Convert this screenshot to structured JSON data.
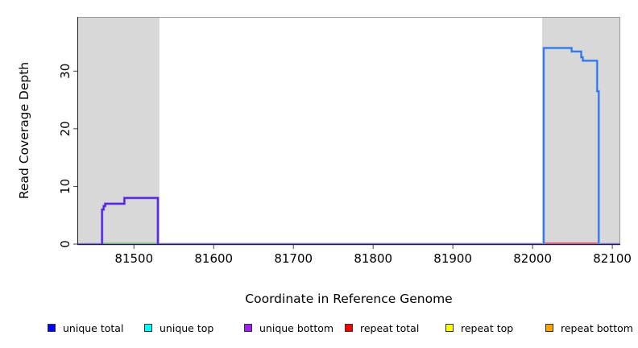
{
  "chart_data": {
    "type": "line",
    "title": "",
    "xlabel": "Coordinate in Reference Genome",
    "ylabel": "Read Coverage Depth",
    "xlim": [
      81429,
      82110
    ],
    "ylim": [
      0,
      39.4
    ],
    "x_ticks": [
      81500,
      81600,
      81700,
      81800,
      81900,
      82000,
      82100
    ],
    "y_ticks": [
      0,
      10,
      20,
      30
    ],
    "grid": false,
    "background_color": "#ffffff",
    "shaded_regions": [
      {
        "name": "left-gray-region",
        "from": 81429,
        "to": 81532,
        "color": "#d8d8d8"
      },
      {
        "name": "right-gray-region",
        "from": 82012,
        "to": 82110,
        "color": "#d8d8d8"
      }
    ],
    "series": [
      {
        "name": "zero-baseline",
        "color": "#6f5fe6",
        "halo": "#a79df2",
        "points": [
          [
            81429,
            0
          ],
          [
            82110,
            0
          ]
        ]
      },
      {
        "name": "unique-zero-segment-left",
        "color": "#8ed08e",
        "points": [
          [
            81460,
            0.18
          ],
          [
            81530,
            0.18
          ]
        ]
      },
      {
        "name": "repeat-zero-segment-right",
        "color": "#f0606e",
        "points": [
          [
            82014,
            0.18
          ],
          [
            82082,
            0.18
          ]
        ]
      },
      {
        "name": "unique-coverage-left-bump",
        "color": "#4a22d8",
        "halo": "#8a5cf0",
        "points": [
          [
            81460,
            0
          ],
          [
            81460,
            6
          ],
          [
            81462,
            6
          ],
          [
            81462,
            6.6
          ],
          [
            81464,
            6.6
          ],
          [
            81464,
            7
          ],
          [
            81488,
            7
          ],
          [
            81488,
            8
          ],
          [
            81530,
            8
          ],
          [
            81530,
            0
          ]
        ]
      },
      {
        "name": "total-coverage-right-peak",
        "color": "#2f6fe0",
        "halo": "#7fb0f0",
        "points": [
          [
            82014,
            0
          ],
          [
            82014,
            34
          ],
          [
            82049,
            34
          ],
          [
            82049,
            33.4
          ],
          [
            82061,
            33.4
          ],
          [
            82061,
            32.4
          ],
          [
            82063,
            32.4
          ],
          [
            82063,
            31.8
          ],
          [
            82081,
            31.8
          ],
          [
            82081,
            26.5
          ],
          [
            82083,
            26.5
          ],
          [
            82083,
            0
          ]
        ]
      }
    ],
    "legend": {
      "position": "bottom",
      "entries": [
        {
          "label": "unique total",
          "color": "#0000ff"
        },
        {
          "label": "unique top",
          "color": "#00ffff"
        },
        {
          "label": "unique bottom",
          "color": "#a020f0"
        },
        {
          "label": "repeat total",
          "color": "#ff0000"
        },
        {
          "label": "repeat top",
          "color": "#ffff00"
        },
        {
          "label": "repeat bottom",
          "color": "#ffa500"
        }
      ]
    }
  }
}
